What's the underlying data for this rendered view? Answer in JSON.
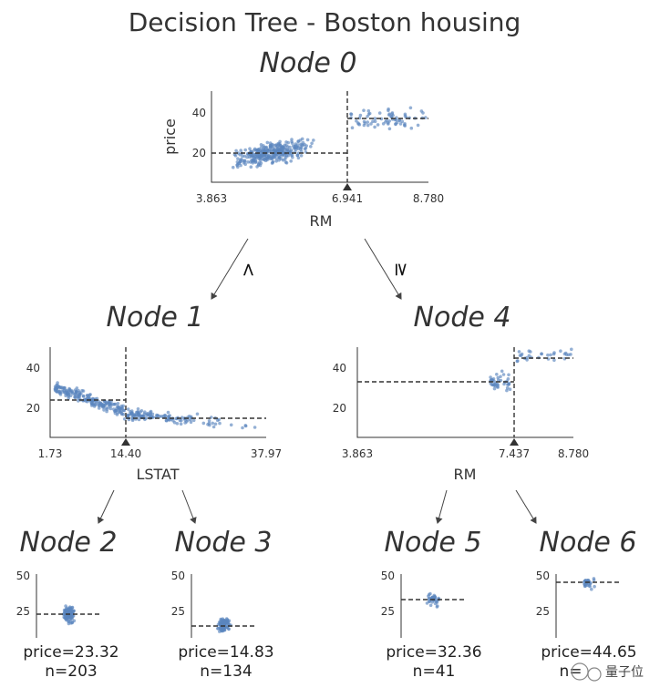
{
  "title": "Decision Tree - Boston housing",
  "edge_labels": {
    "left": "<",
    "right": "≥"
  },
  "watermark": "量子位",
  "colors": {
    "points": "#5b86be",
    "lines": "#333333"
  },
  "nodes": {
    "node0": {
      "name": "Node 0",
      "feature": "RM",
      "ylabel": "price",
      "xticks": [
        "3.863",
        "6.941",
        "8.780"
      ],
      "yticks": [
        "20",
        "40"
      ],
      "split": 6.941,
      "xrange": [
        3.863,
        8.78
      ],
      "yrange": [
        5,
        51
      ],
      "left_mean": 19.9,
      "right_mean": 37.2
    },
    "node1": {
      "name": "Node 1",
      "feature": "LSTAT",
      "xticks": [
        "1.73",
        "14.40",
        "37.97"
      ],
      "yticks": [
        "20",
        "40"
      ],
      "split": 14.4,
      "xrange": [
        1.73,
        37.97
      ],
      "yrange": [
        5,
        51
      ],
      "left_mean": 23.3,
      "right_mean": 14.8
    },
    "node4": {
      "name": "Node 4",
      "feature": "RM",
      "xticks": [
        "3.863",
        "7.437",
        "8.780"
      ],
      "yticks": [
        "20",
        "40"
      ],
      "split": 7.437,
      "xrange": [
        3.863,
        8.78
      ],
      "yrange": [
        5,
        51
      ],
      "left_mean": 32.4,
      "right_mean": 44.7
    },
    "node2": {
      "name": "Node 2",
      "stat": "price=23.32",
      "n": "n=203",
      "yticks": [
        "25",
        "50"
      ],
      "mean": 23.32
    },
    "node3": {
      "name": "Node 3",
      "stat": "price=14.83",
      "n": "n=134",
      "yticks": [
        "25",
        "50"
      ],
      "mean": 14.83
    },
    "node5": {
      "name": "Node 5",
      "stat": "price=32.36",
      "n": "n=41",
      "yticks": [
        "25",
        "50"
      ],
      "mean": 32.36
    },
    "node6": {
      "name": "Node 6",
      "stat": "price=44.65",
      "n": "n=",
      "yticks": [
        "25",
        "50"
      ],
      "mean": 44.65
    }
  }
}
